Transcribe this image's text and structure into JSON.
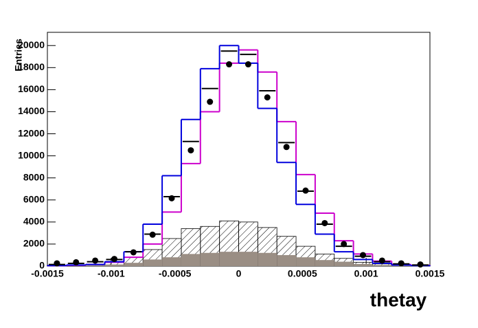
{
  "chart_data": {
    "type": "histogram",
    "x_label": "thetay",
    "y_label": "Entries",
    "bins": [
      -0.0015,
      -0.00135,
      -0.0012,
      -0.00105,
      -0.0009,
      -0.00075,
      -0.0006,
      -0.00045,
      -0.0003,
      -0.00015,
      0,
      0.00015,
      0.0003,
      0.00045,
      0.0006,
      0.00075,
      0.0009,
      0.00105,
      0.0012,
      0.00135,
      0.0015
    ],
    "series": [
      {
        "style": "hatched",
        "color": "#000000",
        "values": [
          50,
          100,
          150,
          400,
          800,
          1500,
          2500,
          3400,
          3600,
          4100,
          4000,
          3500,
          2700,
          1800,
          1100,
          700,
          350,
          200,
          100,
          50
        ]
      },
      {
        "style": "filled",
        "color": "#9a8e84",
        "values": [
          20,
          40,
          80,
          150,
          300,
          600,
          800,
          1100,
          1200,
          1300,
          1300,
          1200,
          1000,
          800,
          550,
          400,
          200,
          100,
          60,
          30
        ]
      },
      {
        "style": "step",
        "color": "#cc00cc",
        "values": [
          40,
          80,
          150,
          350,
          800,
          2000,
          4900,
          9300,
          14000,
          18400,
          19600,
          17600,
          13100,
          8300,
          4800,
          2300,
          1100,
          450,
          150,
          80
        ]
      },
      {
        "style": "step",
        "color": "#0000dd",
        "values": [
          50,
          100,
          150,
          400,
          1300,
          3800,
          8200,
          13300,
          17900,
          20000,
          18400,
          14300,
          9400,
          5600,
          2900,
          1300,
          600,
          250,
          100,
          50
        ]
      },
      {
        "style": "level",
        "color": "#000000",
        "values": [
          150,
          250,
          400,
          600,
          1300,
          2900,
          6300,
          11300,
          16100,
          19500,
          19200,
          15900,
          11200,
          6800,
          3800,
          1800,
          900,
          400,
          200,
          100
        ]
      },
      {
        "style": "points",
        "color": "#000000",
        "values": [
          250,
          350,
          500,
          650,
          1250,
          2850,
          6150,
          10500,
          14900,
          18300,
          18300,
          15300,
          10800,
          6850,
          3900,
          2000,
          1000,
          500,
          250,
          150
        ]
      }
    ],
    "xlim": [
      -0.0015,
      0.0015
    ],
    "ylim": [
      0,
      21200
    ],
    "xticks": [
      -0.0015,
      -0.001,
      -0.0005,
      0,
      0.0005,
      0.001,
      0.0015
    ],
    "yticks": [
      0,
      2000,
      4000,
      6000,
      8000,
      10000,
      12000,
      14000,
      16000,
      18000,
      20000
    ]
  }
}
